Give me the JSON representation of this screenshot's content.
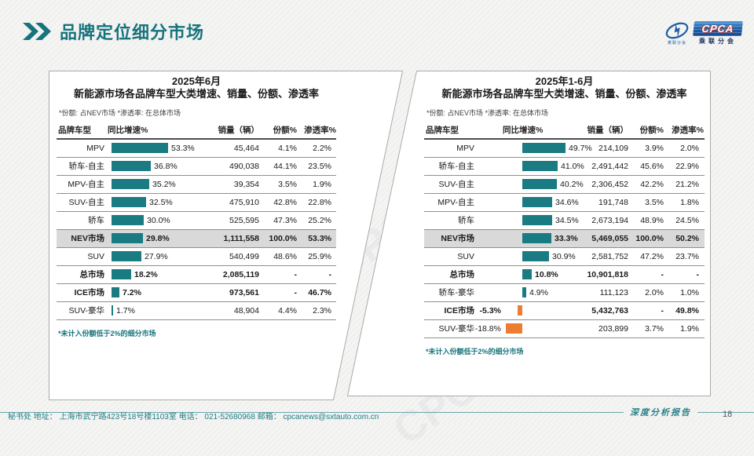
{
  "header": {
    "title": "品牌定位细分市场"
  },
  "logo": {
    "badge": "CPCA",
    "org_name": "乘联分会",
    "swoosh_caption": "乘联分会"
  },
  "watermark_text": "CPCA 乘联分会",
  "charts": [
    {
      "title_line1": "2025年6月",
      "title_line2": "新能源市场各品牌车型大类增速、销量、份额、渗透率",
      "note": "*份额: 占NEV市场   *渗透率: 在总体市场",
      "columns": {
        "category": "品牌车型",
        "growth": "同比增速%",
        "sales": "销量（辆）",
        "share": "份额%",
        "penetration": "渗透率%"
      },
      "footnote": "*未计入份额低于2%的细分市场",
      "rows": [
        {
          "label": "MPV",
          "growth": 53.3,
          "growth_text": "53.3%",
          "sales": "45,464",
          "share": "4.1%",
          "penetration": "2.2%",
          "bold": false,
          "highlight": false
        },
        {
          "label": "轿车-自主",
          "growth": 36.8,
          "growth_text": "36.8%",
          "sales": "490,038",
          "share": "44.1%",
          "penetration": "23.5%",
          "bold": false,
          "highlight": false
        },
        {
          "label": "MPV-自主",
          "growth": 35.2,
          "growth_text": "35.2%",
          "sales": "39,354",
          "share": "3.5%",
          "penetration": "1.9%",
          "bold": false,
          "highlight": false
        },
        {
          "label": "SUV-自主",
          "growth": 32.5,
          "growth_text": "32.5%",
          "sales": "475,910",
          "share": "42.8%",
          "penetration": "22.8%",
          "bold": false,
          "highlight": false
        },
        {
          "label": "轿车",
          "growth": 30.0,
          "growth_text": "30.0%",
          "sales": "525,595",
          "share": "47.3%",
          "penetration": "25.2%",
          "bold": false,
          "highlight": false
        },
        {
          "label": "NEV市场",
          "growth": 29.8,
          "growth_text": "29.8%",
          "sales": "1,111,558",
          "share": "100.0%",
          "penetration": "53.3%",
          "bold": true,
          "highlight": true
        },
        {
          "label": "SUV",
          "growth": 27.9,
          "growth_text": "27.9%",
          "sales": "540,499",
          "share": "48.6%",
          "penetration": "25.9%",
          "bold": false,
          "highlight": false
        },
        {
          "label": "总市场",
          "growth": 18.2,
          "growth_text": "18.2%",
          "sales": "2,085,119",
          "share": "-",
          "penetration": "-",
          "bold": true,
          "highlight": false
        },
        {
          "label": "ICE市场",
          "growth": 7.2,
          "growth_text": "7.2%",
          "sales": "973,561",
          "share": "-",
          "penetration": "46.7%",
          "bold": true,
          "highlight": false
        },
        {
          "label": "SUV-豪华",
          "growth": 1.7,
          "growth_text": "1.7%",
          "sales": "48,904",
          "share": "4.4%",
          "penetration": "2.3%",
          "bold": false,
          "highlight": false
        }
      ]
    },
    {
      "title_line1": "2025年1-6月",
      "title_line2": "新能源市场各品牌车型大类增速、销量、份额、渗透率",
      "note": "*份额: 占NEV市场   *渗透率: 在总体市场",
      "columns": {
        "category": "品牌车型",
        "growth": "同比增速%",
        "sales": "销量（辆）",
        "share": "份额%",
        "penetration": "渗透率%"
      },
      "footnote": "*未计入份额低于2%的细分市场",
      "rows": [
        {
          "label": "MPV",
          "growth": 49.7,
          "growth_text": "49.7%",
          "sales": "214,109",
          "share": "3.9%",
          "penetration": "2.0%",
          "bold": false,
          "highlight": false
        },
        {
          "label": "轿车-自主",
          "growth": 41.0,
          "growth_text": "41.0%",
          "sales": "2,491,442",
          "share": "45.6%",
          "penetration": "22.9%",
          "bold": false,
          "highlight": false
        },
        {
          "label": "SUV-自主",
          "growth": 40.2,
          "growth_text": "40.2%",
          "sales": "2,306,452",
          "share": "42.2%",
          "penetration": "21.2%",
          "bold": false,
          "highlight": false
        },
        {
          "label": "MPV-自主",
          "growth": 34.6,
          "growth_text": "34.6%",
          "sales": "191,748",
          "share": "3.5%",
          "penetration": "1.8%",
          "bold": false,
          "highlight": false
        },
        {
          "label": "轿车",
          "growth": 34.5,
          "growth_text": "34.5%",
          "sales": "2,673,194",
          "share": "48.9%",
          "penetration": "24.5%",
          "bold": false,
          "highlight": false
        },
        {
          "label": "NEV市场",
          "growth": 33.3,
          "growth_text": "33.3%",
          "sales": "5,469,055",
          "share": "100.0%",
          "penetration": "50.2%",
          "bold": true,
          "highlight": true
        },
        {
          "label": "SUV",
          "growth": 30.9,
          "growth_text": "30.9%",
          "sales": "2,581,752",
          "share": "47.2%",
          "penetration": "23.7%",
          "bold": false,
          "highlight": false
        },
        {
          "label": "总市场",
          "growth": 10.8,
          "growth_text": "10.8%",
          "sales": "10,901,818",
          "share": "-",
          "penetration": "-",
          "bold": true,
          "highlight": false
        },
        {
          "label": "轿车-豪华",
          "growth": 4.9,
          "growth_text": "4.9%",
          "sales": "111,123",
          "share": "2.0%",
          "penetration": "1.0%",
          "bold": false,
          "highlight": false
        },
        {
          "label": "ICE市场",
          "growth": -5.3,
          "growth_text": "-5.3%",
          "sales": "5,432,763",
          "share": "-",
          "penetration": "49.8%",
          "bold": true,
          "highlight": false
        },
        {
          "label": "SUV-豪华",
          "growth": -18.8,
          "growth_text": "-18.8%",
          "sales": "203,899",
          "share": "3.7%",
          "penetration": "1.9%",
          "bold": false,
          "highlight": false
        }
      ]
    }
  ],
  "chart_data": [
    {
      "type": "bar",
      "orientation": "horizontal",
      "title": "2025年6月 新能源市场各品牌车型大类增速、销量、份额、渗透率",
      "note": "份额: 占NEV市场; 渗透率: 在总体市场; 未计入份额低于2%的细分市场",
      "categories": [
        "MPV",
        "轿车-自主",
        "MPV-自主",
        "SUV-自主",
        "轿车",
        "NEV市场",
        "SUV",
        "总市场",
        "ICE市场",
        "SUV-豪华"
      ],
      "series": [
        {
          "name": "同比增速%",
          "values": [
            53.3,
            36.8,
            35.2,
            32.5,
            30.0,
            29.8,
            27.9,
            18.2,
            7.2,
            1.7
          ]
        },
        {
          "name": "销量(辆)",
          "values": [
            45464,
            490038,
            39354,
            475910,
            525595,
            1111558,
            540499,
            2085119,
            973561,
            48904
          ]
        },
        {
          "name": "份额%",
          "values": [
            4.1,
            44.1,
            3.5,
            42.8,
            47.3,
            100.0,
            48.6,
            null,
            null,
            4.4
          ]
        },
        {
          "name": "渗透率%",
          "values": [
            2.2,
            23.5,
            1.9,
            22.8,
            25.2,
            53.3,
            25.9,
            null,
            46.7,
            2.3
          ]
        }
      ],
      "bar_series": "同比增速%",
      "bar_colors": {
        "positive": "#1B7B82",
        "negative": "#ED7D31"
      },
      "highlighted_category": "NEV市场"
    },
    {
      "type": "bar",
      "orientation": "horizontal",
      "title": "2025年1-6月 新能源市场各品牌车型大类增速、销量、份额、渗透率",
      "note": "份额: 占NEV市场; 渗透率: 在总体市场; 未计入份额低于2%的细分市场",
      "categories": [
        "MPV",
        "轿车-自主",
        "SUV-自主",
        "MPV-自主",
        "轿车",
        "NEV市场",
        "SUV",
        "总市场",
        "轿车-豪华",
        "ICE市场",
        "SUV-豪华"
      ],
      "series": [
        {
          "name": "同比增速%",
          "values": [
            49.7,
            41.0,
            40.2,
            34.6,
            34.5,
            33.3,
            30.9,
            10.8,
            4.9,
            -5.3,
            -18.8
          ]
        },
        {
          "name": "销量(辆)",
          "values": [
            214109,
            2491442,
            2306452,
            191748,
            2673194,
            5469055,
            2581752,
            10901818,
            111123,
            5432763,
            203899
          ]
        },
        {
          "name": "份额%",
          "values": [
            3.9,
            45.6,
            42.2,
            3.5,
            48.9,
            100.0,
            47.2,
            null,
            2.0,
            null,
            3.7
          ]
        },
        {
          "name": "渗透率%",
          "values": [
            2.0,
            22.9,
            21.2,
            1.8,
            24.5,
            50.2,
            23.7,
            null,
            1.0,
            49.8,
            1.9
          ]
        }
      ],
      "bar_series": "同比增速%",
      "bar_colors": {
        "positive": "#1B7B82",
        "negative": "#ED7D31"
      },
      "highlighted_category": "NEV市场"
    }
  ],
  "footer": {
    "left_text": "秘书处  地址： 上海市武宁路423号18号楼1103室  电话： 021-52680968   邮箱： cpcanews@sxtauto.com.cn",
    "report_label": "深度分析报告",
    "page_number": "18"
  },
  "colors": {
    "accent_teal": "#17747C",
    "bar_positive": "#1B7B82",
    "bar_negative": "#ED7D31",
    "highlight_row": "#D9D9D9"
  }
}
